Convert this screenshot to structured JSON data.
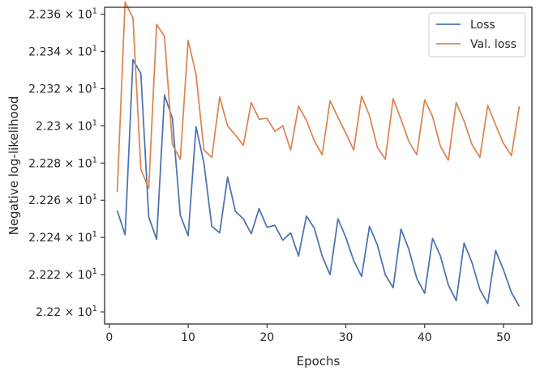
{
  "chart_data": {
    "type": "line",
    "xlabel": "Epochs",
    "ylabel": "Negative log-likelihood",
    "xlim": [
      -0.6,
      53.6
    ],
    "ylim": [
      22.1935,
      22.3637
    ],
    "x_ticks": [
      0,
      10,
      20,
      30,
      40,
      50
    ],
    "x_tick_labels": [
      "0",
      "10",
      "20",
      "30",
      "40",
      "50"
    ],
    "y_ticks": [
      22.2,
      22.22,
      22.24,
      22.26,
      22.28,
      22.3,
      22.32,
      22.34,
      22.36
    ],
    "y_tick_mantissas": [
      "2.22",
      "2.222",
      "2.224",
      "2.226",
      "2.228",
      "2.23",
      "2.232",
      "2.234",
      "2.236"
    ],
    "y_tick_base": "× 10",
    "y_tick_exponent": "1",
    "grid": false,
    "legend_position": "top-right",
    "x": [
      1,
      2,
      3,
      4,
      5,
      6,
      7,
      8,
      9,
      10,
      11,
      12,
      13,
      14,
      15,
      16,
      17,
      18,
      19,
      20,
      21,
      22,
      23,
      24,
      25,
      26,
      27,
      28,
      29,
      30,
      31,
      32,
      33,
      34,
      35,
      36,
      37,
      38,
      39,
      40,
      41,
      42,
      43,
      44,
      45,
      46,
      47,
      48,
      49,
      50,
      51,
      52
    ],
    "series": [
      {
        "name": "Loss",
        "color": "#4c72b0",
        "values": [
          22.2545,
          22.2415,
          22.3355,
          22.328,
          22.251,
          22.239,
          22.3165,
          22.304,
          22.252,
          22.241,
          22.2995,
          22.28,
          22.246,
          22.2425,
          22.2725,
          22.254,
          22.25,
          22.242,
          22.2555,
          22.2455,
          22.2465,
          22.2385,
          22.2425,
          22.23,
          22.2515,
          22.245,
          22.23,
          22.22,
          22.25,
          22.24,
          22.2275,
          22.219,
          22.246,
          22.236,
          22.22,
          22.213,
          22.2445,
          22.2335,
          22.218,
          22.21,
          22.2395,
          22.23,
          22.2145,
          22.206,
          22.237,
          22.2265,
          22.212,
          22.2045,
          22.233,
          22.2225,
          22.2105,
          22.203
        ]
      },
      {
        "name": "Val. loss",
        "color": "#dd8452",
        "values": [
          22.2645,
          22.3665,
          22.358,
          22.2765,
          22.2665,
          22.3545,
          22.348,
          22.29,
          22.282,
          22.346,
          22.3275,
          22.287,
          22.283,
          22.3155,
          22.3,
          22.295,
          22.2895,
          22.3125,
          22.3035,
          22.304,
          22.297,
          22.3,
          22.287,
          22.3105,
          22.303,
          22.292,
          22.2845,
          22.3135,
          22.3045,
          22.296,
          22.287,
          22.316,
          22.3055,
          22.2885,
          22.282,
          22.3145,
          22.3035,
          22.2915,
          22.2845,
          22.314,
          22.305,
          22.289,
          22.2815,
          22.3125,
          22.3025,
          22.29,
          22.283,
          22.311,
          22.3005,
          22.2905,
          22.284,
          22.3105
        ]
      }
    ]
  }
}
